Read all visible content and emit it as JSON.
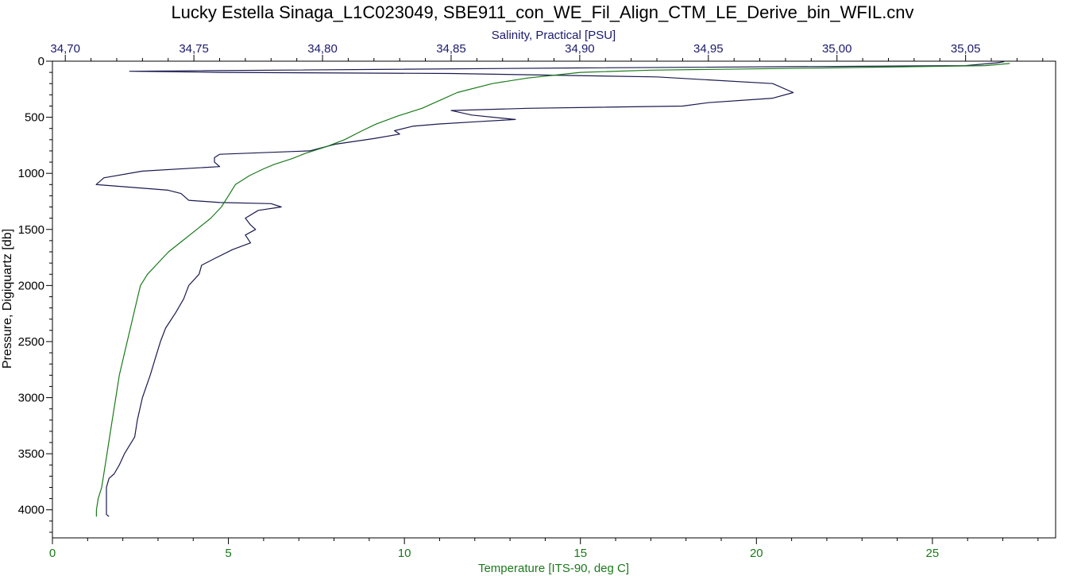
{
  "chart_data": {
    "type": "line",
    "title": "Lucky Estella Sinaga_L1C023049, SBE911_con_WE_Fil_Align_CTM_LE_Derive_bin_WFIL.cnv",
    "y_axis": {
      "label": "Pressure, Digiquartz [db]",
      "range": [
        0,
        4250
      ],
      "inverted": true,
      "ticks": [
        "0",
        "500",
        "1000",
        "1500",
        "2000",
        "2500",
        "3000",
        "3500",
        "4000"
      ],
      "tick_values": [
        0,
        500,
        1000,
        1500,
        2000,
        2500,
        3000,
        3500,
        4000
      ],
      "minor_step": 100
    },
    "x_axis_top": {
      "label": "Salinity, Practical [PSU]",
      "range": [
        34.695,
        35.085
      ],
      "ticks": [
        "34,70",
        "34,75",
        "34,80",
        "34,85",
        "34,90",
        "34,95",
        "35,00",
        "35,05"
      ],
      "tick_values": [
        34.7,
        34.75,
        34.8,
        34.85,
        34.9,
        34.95,
        35.0,
        35.05
      ],
      "minor_step": 0.01,
      "color": "#1a1a6e"
    },
    "x_axis_bottom": {
      "label": "Temperature [ITS-90, deg C]",
      "range": [
        0,
        28.5
      ],
      "ticks": [
        "0",
        "5",
        "10",
        "15",
        "20",
        "25"
      ],
      "tick_values": [
        0,
        5,
        10,
        15,
        20,
        25
      ],
      "minor_step": 1,
      "color": "#1a7a1a"
    },
    "grid": false,
    "series": [
      {
        "axis": "top",
        "color": "#1a1a50",
        "points": [
          [
            35.065,
            5
          ],
          [
            35.062,
            15
          ],
          [
            35.05,
            40
          ],
          [
            34.9,
            60
          ],
          [
            34.725,
            90
          ],
          [
            34.76,
            100
          ],
          [
            34.85,
            110
          ],
          [
            34.93,
            140
          ],
          [
            34.975,
            200
          ],
          [
            34.983,
            280
          ],
          [
            34.975,
            330
          ],
          [
            34.95,
            370
          ],
          [
            34.94,
            400
          ],
          [
            34.88,
            420
          ],
          [
            34.85,
            440
          ],
          [
            34.858,
            480
          ],
          [
            34.875,
            520
          ],
          [
            34.86,
            540
          ],
          [
            34.845,
            560
          ],
          [
            34.835,
            580
          ],
          [
            34.828,
            620
          ],
          [
            34.83,
            650
          ],
          [
            34.82,
            690
          ],
          [
            34.805,
            740
          ],
          [
            34.795,
            800
          ],
          [
            34.76,
            830
          ],
          [
            34.758,
            860
          ],
          [
            34.758,
            900
          ],
          [
            34.76,
            940
          ],
          [
            34.73,
            980
          ],
          [
            34.715,
            1040
          ],
          [
            34.712,
            1100
          ],
          [
            34.74,
            1150
          ],
          [
            34.745,
            1180
          ],
          [
            34.748,
            1240
          ],
          [
            34.76,
            1260
          ],
          [
            34.78,
            1270
          ],
          [
            34.784,
            1300
          ],
          [
            34.775,
            1330
          ],
          [
            34.77,
            1400
          ],
          [
            34.772,
            1460
          ],
          [
            34.774,
            1500
          ],
          [
            34.77,
            1550
          ],
          [
            34.772,
            1620
          ],
          [
            34.765,
            1680
          ],
          [
            34.758,
            1760
          ],
          [
            34.753,
            1820
          ],
          [
            34.752,
            1900
          ],
          [
            34.748,
            2000
          ],
          [
            34.746,
            2120
          ],
          [
            34.743,
            2240
          ],
          [
            34.739,
            2380
          ],
          [
            34.737,
            2500
          ],
          [
            34.735,
            2650
          ],
          [
            34.733,
            2800
          ],
          [
            34.73,
            3000
          ],
          [
            34.728,
            3200
          ],
          [
            34.727,
            3350
          ],
          [
            34.723,
            3500
          ],
          [
            34.721,
            3600
          ],
          [
            34.719,
            3680
          ],
          [
            34.717,
            3720
          ],
          [
            34.716,
            3800
          ],
          [
            34.716,
            3900
          ],
          [
            34.716,
            4000
          ],
          [
            34.716,
            4040
          ],
          [
            34.717,
            4060
          ]
        ]
      },
      {
        "axis": "bottom",
        "color": "#1a7a1a",
        "points": [
          [
            27.2,
            20
          ],
          [
            26.5,
            40
          ],
          [
            22.0,
            60
          ],
          [
            17.0,
            80
          ],
          [
            15.0,
            100
          ],
          [
            13.5,
            150
          ],
          [
            12.5,
            200
          ],
          [
            11.5,
            280
          ],
          [
            11.0,
            350
          ],
          [
            10.5,
            420
          ],
          [
            9.8,
            490
          ],
          [
            9.2,
            560
          ],
          [
            8.8,
            620
          ],
          [
            8.3,
            700
          ],
          [
            7.8,
            760
          ],
          [
            7.2,
            820
          ],
          [
            6.8,
            870
          ],
          [
            6.3,
            920
          ],
          [
            6.0,
            960
          ],
          [
            5.6,
            1020
          ],
          [
            5.2,
            1100
          ],
          [
            5.0,
            1200
          ],
          [
            4.8,
            1300
          ],
          [
            4.5,
            1400
          ],
          [
            4.1,
            1500
          ],
          [
            3.7,
            1600
          ],
          [
            3.3,
            1700
          ],
          [
            3.0,
            1800
          ],
          [
            2.7,
            1900
          ],
          [
            2.5,
            2000
          ],
          [
            2.35,
            2200
          ],
          [
            2.2,
            2400
          ],
          [
            2.05,
            2600
          ],
          [
            1.9,
            2800
          ],
          [
            1.8,
            3000
          ],
          [
            1.7,
            3200
          ],
          [
            1.6,
            3400
          ],
          [
            1.5,
            3600
          ],
          [
            1.4,
            3800
          ],
          [
            1.3,
            3900
          ],
          [
            1.25,
            4000
          ],
          [
            1.25,
            4060
          ]
        ]
      }
    ]
  }
}
